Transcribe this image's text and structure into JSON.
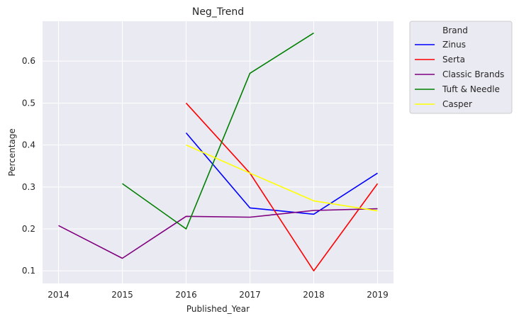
{
  "chart_data": {
    "type": "line",
    "title": "Neg_Trend",
    "xlabel": "Published_Year",
    "ylabel": "Percentage",
    "xlim": [
      2013.75,
      2019.25
    ],
    "ylim": [
      0.07,
      0.695
    ],
    "x_ticks": [
      "2014",
      "2015",
      "2016",
      "2017",
      "2018",
      "2019"
    ],
    "y_ticks": [
      "0.1",
      "0.2",
      "0.3",
      "0.4",
      "0.5",
      "0.6"
    ],
    "grid": true,
    "legend": {
      "title": "Brand",
      "placement": "outside upper right"
    },
    "series": [
      {
        "name": "Zinus",
        "color": "#0000ff",
        "points": [
          [
            2016,
            0.429
          ],
          [
            2017,
            0.25
          ],
          [
            2018,
            0.235
          ],
          [
            2019,
            0.333
          ]
        ]
      },
      {
        "name": "Serta",
        "color": "#ff0000",
        "points": [
          [
            2016,
            0.5
          ],
          [
            2017,
            0.333
          ],
          [
            2018,
            0.1
          ],
          [
            2019,
            0.308
          ]
        ]
      },
      {
        "name": "Classic Brands",
        "color": "#800080",
        "points": [
          [
            2014,
            0.208
          ],
          [
            2015,
            0.13
          ],
          [
            2016,
            0.23
          ],
          [
            2017,
            0.228
          ],
          [
            2018,
            0.244
          ],
          [
            2019,
            0.248
          ]
        ]
      },
      {
        "name": "Tuft & Needle",
        "color": "#008000",
        "points": [
          [
            2015,
            0.308
          ],
          [
            2016,
            0.2
          ],
          [
            2017,
            0.571
          ],
          [
            2018,
            0.667
          ]
        ]
      },
      {
        "name": "Casper",
        "color": "#ffff00",
        "points": [
          [
            2016,
            0.4
          ],
          [
            2017,
            0.333
          ],
          [
            2018,
            0.267
          ],
          [
            2019,
            0.243
          ]
        ]
      }
    ]
  }
}
